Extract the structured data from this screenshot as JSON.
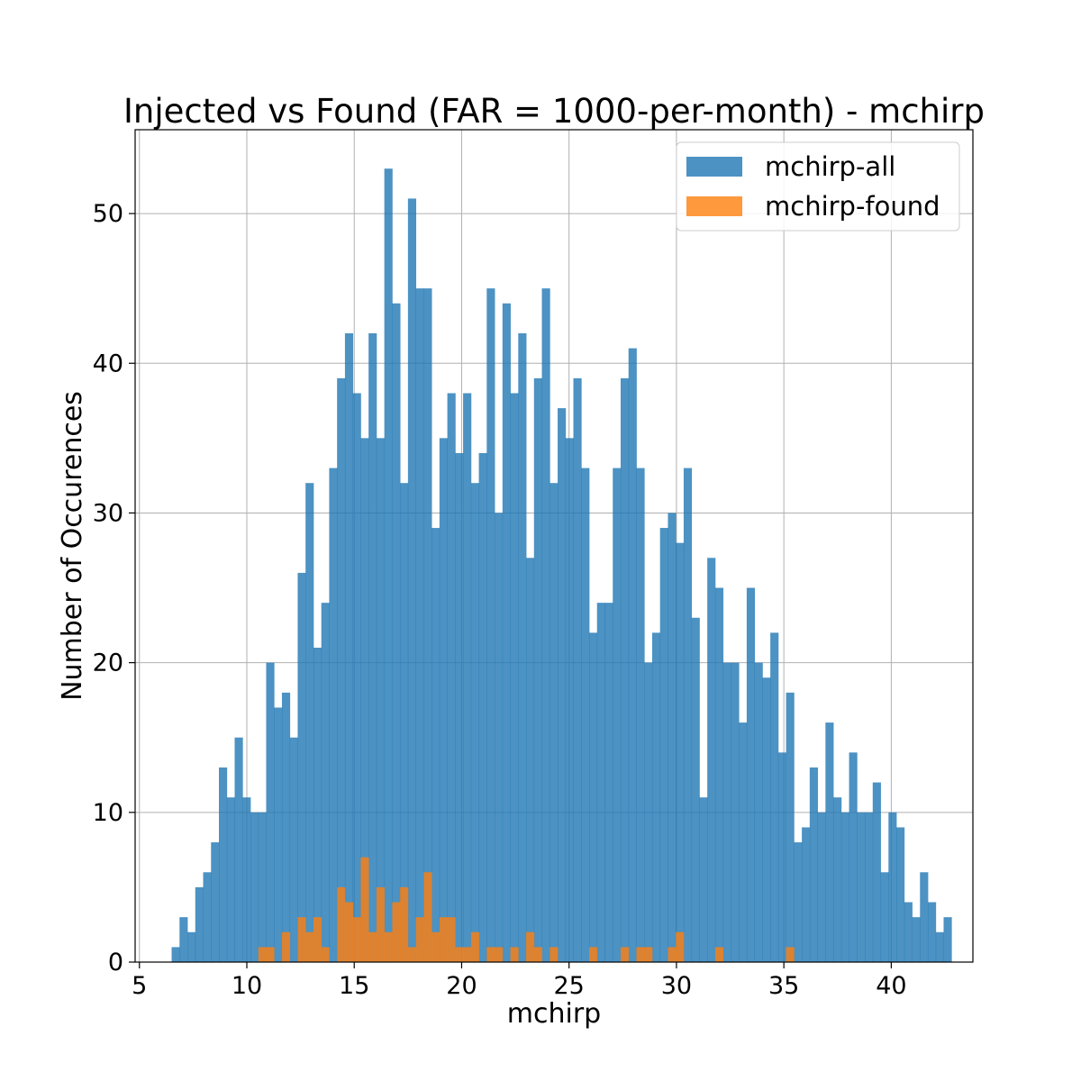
{
  "chart_data": {
    "type": "bar",
    "title": "Injected vs Found (FAR = 1000-per-month) - mchirp",
    "xlabel": "mchirp",
    "ylabel": "Number of Occurences",
    "xlim": [
      4.8,
      43.8
    ],
    "ylim": [
      0,
      55.6
    ],
    "xticks": [
      5,
      10,
      15,
      20,
      25,
      30,
      35,
      40
    ],
    "yticks": [
      0,
      10,
      20,
      30,
      40,
      50
    ],
    "grid": true,
    "legend_position": "top-right",
    "bin_start": 6.5,
    "bin_width": 0.3667,
    "series": [
      {
        "name": "mchirp-all",
        "color": "#1f77b4",
        "values": [
          1,
          3,
          2,
          5,
          6,
          8,
          13,
          11,
          15,
          11,
          10,
          10,
          20,
          17,
          18,
          15,
          26,
          32,
          21,
          24,
          33,
          39,
          42,
          38,
          35,
          42,
          35,
          53,
          44,
          32,
          51,
          45,
          45,
          29,
          35,
          38,
          34,
          38,
          32,
          34,
          45,
          30,
          44,
          38,
          42,
          27,
          39,
          45,
          32,
          37,
          35,
          39,
          33,
          22,
          24,
          24,
          33,
          39,
          41,
          33,
          20,
          22,
          29,
          30,
          28,
          33,
          23,
          11,
          27,
          25,
          20,
          20,
          16,
          25,
          20,
          19,
          22,
          14,
          18,
          8,
          9,
          13,
          10,
          16,
          11,
          10,
          14,
          10,
          10,
          12,
          6,
          10,
          9,
          4,
          3,
          6,
          4,
          2,
          3
        ]
      },
      {
        "name": "mchirp-found",
        "color": "#ff7f0e",
        "values": [
          0,
          0,
          0,
          0,
          0,
          0,
          0,
          0,
          0,
          0,
          0,
          1,
          1,
          0,
          2,
          0,
          3,
          2,
          3,
          1,
          0,
          5,
          4,
          3,
          7,
          2,
          5,
          2,
          4,
          5,
          1,
          3,
          6,
          2,
          3,
          3,
          1,
          1,
          2,
          0,
          1,
          1,
          0,
          1,
          0,
          2,
          1,
          0,
          1,
          0,
          0,
          0,
          0,
          1,
          0,
          0,
          0,
          1,
          0,
          1,
          1,
          0,
          0,
          1,
          2,
          0,
          0,
          0,
          0,
          1,
          0,
          0,
          0,
          0,
          0,
          0,
          0,
          0,
          1,
          0,
          0,
          0,
          0,
          0,
          0,
          0,
          0,
          0,
          0,
          0,
          0,
          0,
          0,
          0,
          0,
          0,
          0,
          0,
          0
        ]
      }
    ]
  }
}
